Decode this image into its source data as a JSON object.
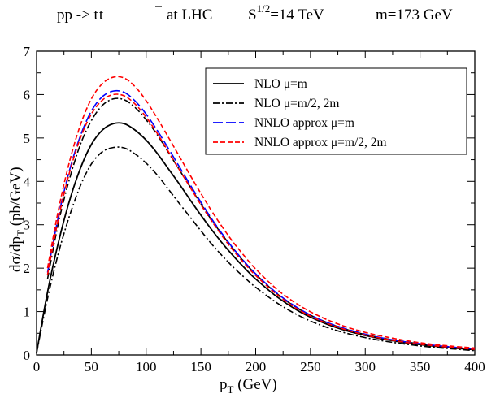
{
  "chart_data": {
    "type": "line",
    "title": {
      "process": "pp -> t",
      "process_bar": "t",
      "at_lhc": "at  LHC",
      "energy_pre": "S",
      "energy_sup": "1/2",
      "energy_post": "=14 TeV",
      "mass": "m=173 GeV"
    },
    "xlabel": {
      "main": "p",
      "sub": "T",
      "unit": " (GeV)"
    },
    "ylabel": {
      "main": "dσ/dp",
      "sub": "T",
      "unit": " (pb/GeV)"
    },
    "xlim": [
      0,
      400
    ],
    "ylim": [
      0,
      7
    ],
    "xticks": [
      "0",
      "50",
      "100",
      "150",
      "200",
      "250",
      "300",
      "350",
      "400"
    ],
    "yticks": [
      "0",
      "1",
      "2",
      "3",
      "4",
      "5",
      "6",
      "7"
    ],
    "grid": false,
    "legend_position": "top-right",
    "legend": [
      {
        "label": "NLO  μ=m",
        "color": "#000000",
        "dash": "solid"
      },
      {
        "label": "NLO  μ=m/2, 2m",
        "color": "#000000",
        "dash": "dashdot"
      },
      {
        "label": "NNLO approx  μ=m",
        "color": "#0000ff",
        "dash": "longdash"
      },
      {
        "label": "NNLO approx  μ=m/2, 2m",
        "color": "#ff0000",
        "dash": "dash"
      }
    ],
    "series": [
      {
        "legend_index": 0,
        "color": "#000000",
        "dash": "solid",
        "x": [
          0,
          10,
          20,
          30,
          40,
          50,
          60,
          70,
          80,
          90,
          100,
          110,
          120,
          130,
          140,
          150,
          160,
          170,
          180,
          190,
          200,
          220,
          240,
          260,
          280,
          300,
          320,
          340,
          360,
          380,
          400
        ],
        "y": [
          0.05,
          1.45,
          2.6,
          3.55,
          4.3,
          4.85,
          5.18,
          5.33,
          5.33,
          5.18,
          4.95,
          4.65,
          4.3,
          3.95,
          3.58,
          3.22,
          2.88,
          2.56,
          2.27,
          2.0,
          1.75,
          1.33,
          1.0,
          0.76,
          0.58,
          0.45,
          0.35,
          0.27,
          0.21,
          0.16,
          0.12
        ]
      },
      {
        "legend_index": 1,
        "color": "#000000",
        "dash": "dashdot",
        "x": [
          0,
          10,
          20,
          30,
          40,
          50,
          60,
          70,
          80,
          90,
          100,
          110,
          120,
          130,
          140,
          150,
          160,
          170,
          180,
          190,
          200,
          220,
          240,
          260,
          280,
          300,
          320,
          340,
          360,
          380,
          400
        ],
        "y": [
          0.05,
          1.3,
          2.35,
          3.2,
          3.9,
          4.4,
          4.68,
          4.78,
          4.77,
          4.63,
          4.42,
          4.15,
          3.83,
          3.5,
          3.18,
          2.86,
          2.55,
          2.27,
          2.01,
          1.78,
          1.56,
          1.19,
          0.9,
          0.68,
          0.52,
          0.4,
          0.31,
          0.24,
          0.18,
          0.14,
          0.1
        ]
      },
      {
        "legend_index": 1,
        "color": "#000000",
        "dash": "dashdot",
        "x": [
          10,
          20,
          30,
          40,
          50,
          60,
          70,
          80,
          90,
          100,
          110,
          120,
          130,
          140,
          150,
          160,
          170,
          180,
          190,
          200,
          220,
          240,
          260,
          280,
          300,
          320,
          340,
          360,
          380,
          400
        ],
        "y": [
          1.75,
          3.05,
          4.05,
          4.85,
          5.4,
          5.75,
          5.9,
          5.88,
          5.7,
          5.42,
          5.08,
          4.68,
          4.28,
          3.88,
          3.48,
          3.1,
          2.75,
          2.43,
          2.13,
          1.86,
          1.4,
          1.05,
          0.8,
          0.61,
          0.47,
          0.37,
          0.29,
          0.22,
          0.17,
          0.13
        ]
      },
      {
        "legend_index": 2,
        "color": "#0000ff",
        "dash": "longdash",
        "x": [
          10,
          20,
          30,
          40,
          50,
          60,
          70,
          80,
          90,
          100,
          110,
          120,
          130,
          140,
          150,
          160,
          170,
          180,
          190,
          200,
          220,
          240,
          260,
          280,
          300,
          320,
          340,
          360,
          380,
          400
        ],
        "y": [
          1.9,
          3.2,
          4.25,
          5.05,
          5.62,
          5.95,
          6.08,
          6.05,
          5.85,
          5.55,
          5.18,
          4.77,
          4.35,
          3.93,
          3.52,
          3.13,
          2.77,
          2.44,
          2.14,
          1.87,
          1.41,
          1.06,
          0.8,
          0.62,
          0.48,
          0.37,
          0.29,
          0.23,
          0.18,
          0.14
        ]
      },
      {
        "legend_index": 3,
        "color": "#ff0000",
        "dash": "dash",
        "x": [
          10,
          20,
          30,
          40,
          50,
          60,
          70,
          80,
          90,
          100,
          110,
          120,
          130,
          140,
          150,
          160,
          170,
          180,
          190,
          200,
          220,
          240,
          260,
          280,
          300,
          320,
          340,
          360,
          380,
          400
        ],
        "y": [
          2.0,
          3.35,
          4.45,
          5.3,
          5.9,
          6.25,
          6.4,
          6.38,
          6.18,
          5.86,
          5.46,
          5.03,
          4.59,
          4.15,
          3.72,
          3.31,
          2.93,
          2.58,
          2.27,
          1.98,
          1.5,
          1.14,
          0.87,
          0.67,
          0.52,
          0.41,
          0.32,
          0.25,
          0.2,
          0.16
        ]
      },
      {
        "legend_index": 3,
        "color": "#ff0000",
        "dash": "dash",
        "x": [
          10,
          20,
          30,
          40,
          50,
          60,
          70,
          80,
          90,
          100,
          110,
          120,
          130,
          140,
          150,
          160,
          170,
          180,
          190,
          200,
          220,
          240,
          260,
          280,
          300,
          320,
          340,
          360,
          380,
          400
        ],
        "y": [
          1.85,
          3.15,
          4.2,
          5.0,
          5.55,
          5.87,
          6.0,
          5.97,
          5.78,
          5.48,
          5.11,
          4.7,
          4.28,
          3.87,
          3.46,
          3.08,
          2.72,
          2.39,
          2.1,
          1.83,
          1.38,
          1.03,
          0.78,
          0.6,
          0.46,
          0.36,
          0.28,
          0.22,
          0.17,
          0.13
        ]
      }
    ]
  }
}
